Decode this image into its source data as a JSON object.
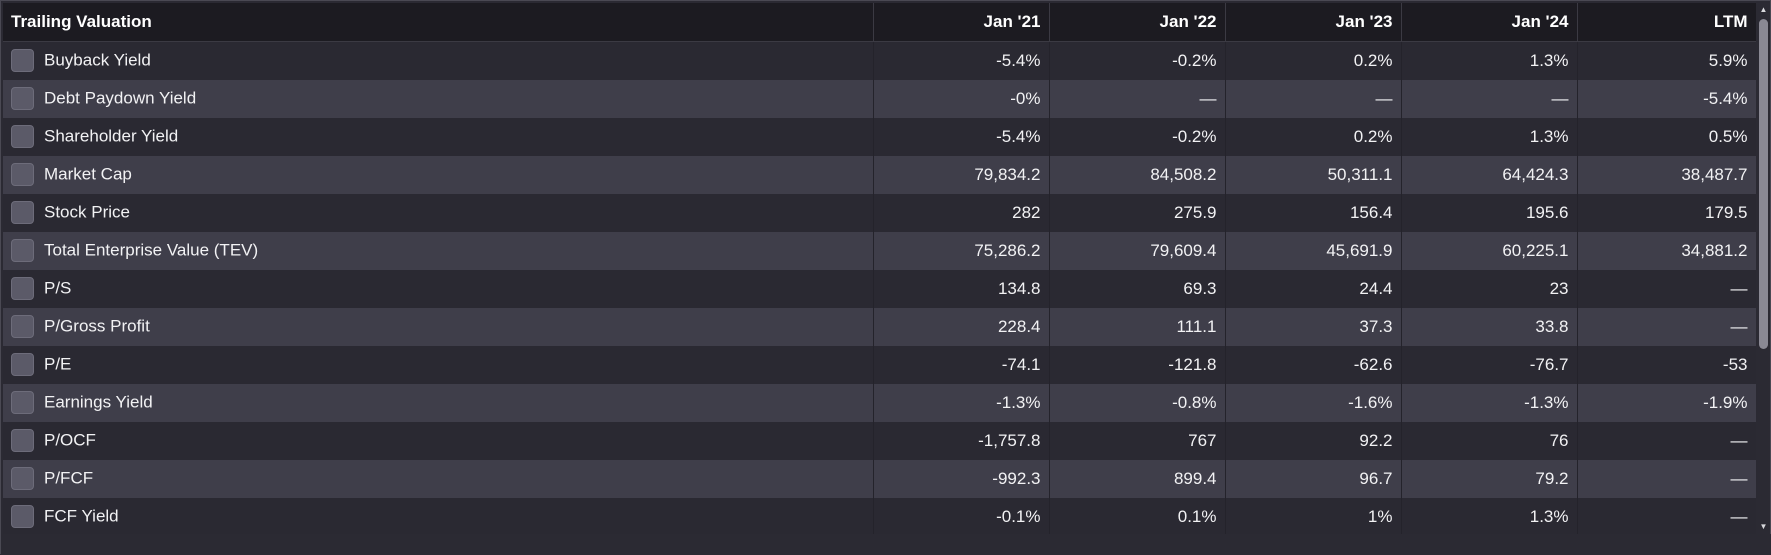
{
  "table": {
    "title": "Trailing Valuation",
    "columns": [
      "Jan '21",
      "Jan '22",
      "Jan '23",
      "Jan '24",
      "LTM"
    ],
    "rows": [
      {
        "label": "Buyback Yield",
        "values": [
          "-5.4%",
          "-0.2%",
          "0.2%",
          "1.3%",
          "5.9%"
        ]
      },
      {
        "label": "Debt Paydown Yield",
        "values": [
          "-0%",
          "—",
          "—",
          "—",
          "-5.4%"
        ]
      },
      {
        "label": "Shareholder Yield",
        "values": [
          "-5.4%",
          "-0.2%",
          "0.2%",
          "1.3%",
          "0.5%"
        ]
      },
      {
        "label": "Market Cap",
        "values": [
          "79,834.2",
          "84,508.2",
          "50,311.1",
          "64,424.3",
          "38,487.7"
        ]
      },
      {
        "label": "Stock Price",
        "values": [
          "282",
          "275.9",
          "156.4",
          "195.6",
          "179.5"
        ]
      },
      {
        "label": "Total Enterprise Value (TEV)",
        "values": [
          "75,286.2",
          "79,609.4",
          "45,691.9",
          "60,225.1",
          "34,881.2"
        ]
      },
      {
        "label": "P/S",
        "values": [
          "134.8",
          "69.3",
          "24.4",
          "23",
          "—"
        ]
      },
      {
        "label": "P/Gross Profit",
        "values": [
          "228.4",
          "111.1",
          "37.3",
          "33.8",
          "—"
        ]
      },
      {
        "label": "P/E",
        "values": [
          "-74.1",
          "-121.8",
          "-62.6",
          "-76.7",
          "-53"
        ]
      },
      {
        "label": "Earnings Yield",
        "values": [
          "-1.3%",
          "-0.8%",
          "-1.6%",
          "-1.3%",
          "-1.9%"
        ]
      },
      {
        "label": "P/OCF",
        "values": [
          "-1,757.8",
          "767",
          "92.2",
          "76",
          "—"
        ]
      },
      {
        "label": "P/FCF",
        "values": [
          "-992.3",
          "899.4",
          "96.7",
          "79.2",
          "—"
        ]
      },
      {
        "label": "FCF Yield",
        "values": [
          "-0.1%",
          "0.1%",
          "1%",
          "1.3%",
          "—"
        ]
      }
    ]
  },
  "colors": {
    "header_bg": "#1c1b21",
    "row_odd": "#2a2932",
    "row_even": "#3f3e4a",
    "text": "#f2f2f4",
    "checkbox": "#5b5a68"
  },
  "icons": {
    "row_toggle": "checkbox-icon",
    "scroll_up": "triangle-up-icon",
    "scroll_down": "triangle-down-icon"
  }
}
